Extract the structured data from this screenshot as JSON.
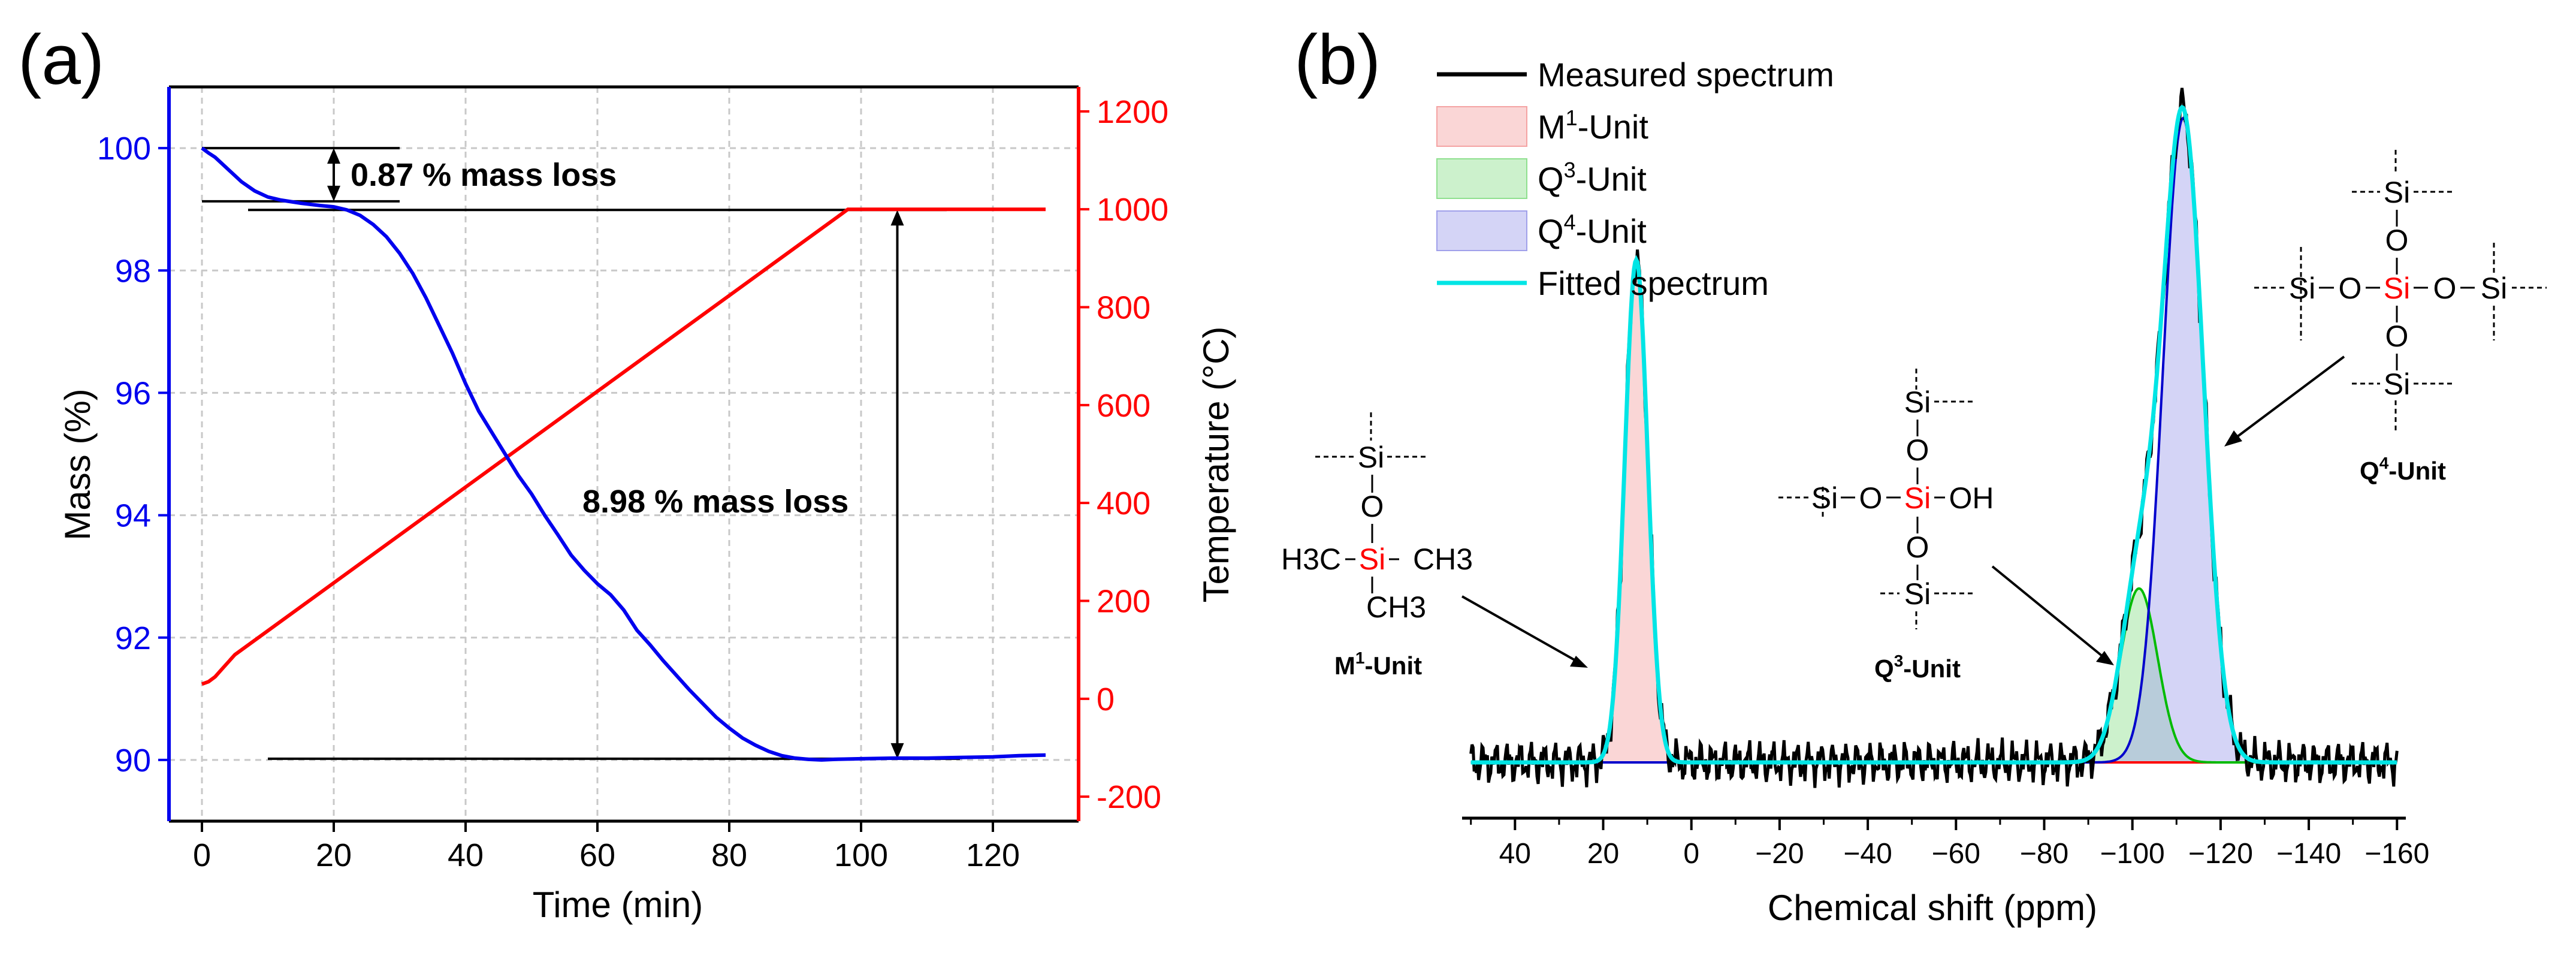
{
  "chart_data": [
    {
      "type": "line",
      "panel_label": "(a)",
      "xlabel": "Time (min)",
      "ylabel_left": "Mass (%)",
      "ylabel_right": "Temperature (°C)",
      "xlim": [
        -5,
        133
      ],
      "ylim_left": [
        89.0,
        101.0
      ],
      "ylim_right": [
        -250,
        1250
      ],
      "xticks": [
        0,
        20,
        40,
        60,
        80,
        100,
        120
      ],
      "yticks_left": [
        90,
        92,
        94,
        96,
        98,
        100
      ],
      "yticks_right": [
        -200,
        0,
        200,
        400,
        600,
        800,
        1000,
        1200
      ],
      "grid": true,
      "colors": {
        "mass": "#0000ee",
        "temperature": "#ff0000",
        "left_axis": "#0000ee",
        "right_axis": "#ff0000"
      },
      "series": [
        {
          "axis": "left",
          "x": [
            0,
            1,
            2,
            4,
            6,
            8,
            10,
            12,
            15,
            18,
            20,
            22,
            24,
            26,
            28,
            30,
            32,
            34,
            36,
            38,
            40,
            42,
            44,
            46,
            48,
            50,
            52,
            54,
            56,
            58,
            60,
            62,
            64,
            66,
            68,
            70,
            72,
            74,
            76,
            78,
            80,
            82,
            84,
            86,
            88,
            90,
            92,
            94,
            96,
            100,
            105,
            110,
            115,
            120,
            124,
            128
          ],
          "values": [
            100.0,
            99.92,
            99.85,
            99.65,
            99.45,
            99.3,
            99.2,
            99.15,
            99.1,
            99.06,
            99.04,
            98.99,
            98.9,
            98.75,
            98.55,
            98.28,
            97.95,
            97.55,
            97.1,
            96.65,
            96.15,
            95.7,
            95.35,
            95.0,
            94.65,
            94.35,
            94.0,
            93.68,
            93.35,
            93.1,
            92.88,
            92.7,
            92.45,
            92.12,
            91.88,
            91.62,
            91.38,
            91.14,
            90.92,
            90.7,
            90.52,
            90.36,
            90.24,
            90.14,
            90.07,
            90.03,
            90.01,
            90.0,
            90.01,
            90.02,
            90.03,
            90.03,
            90.04,
            90.05,
            90.07,
            90.08
          ]
        },
        {
          "axis": "right",
          "x": [
            0,
            1,
            2,
            3,
            5,
            97,
            98,
            100,
            110,
            120,
            128
          ],
          "values": [
            30,
            35,
            45,
            60,
            90,
            990,
            1000,
            1000,
            1000,
            1000,
            1000
          ]
        }
      ],
      "annotations": [
        {
          "text": "0.87 % mass loss"
        },
        {
          "text": "8.98 % mass loss"
        }
      ]
    },
    {
      "type": "area",
      "panel_label": "(b)",
      "xlabel": "Chemical shift (ppm)",
      "xlim": [
        52,
        -162
      ],
      "xticks": [
        40,
        20,
        0,
        -20,
        -40,
        -60,
        -80,
        -100,
        -120,
        -140,
        -160
      ],
      "grid": false,
      "legend": {
        "placement": "top-left",
        "entries": [
          {
            "label": "Measured spectrum",
            "sup": "",
            "rest": "",
            "style": "line",
            "color": "#000000"
          },
          {
            "label": "M",
            "sup": "1",
            "rest": "-Unit",
            "style": "patch",
            "color": "#f4a3a3"
          },
          {
            "label": "Q",
            "sup": "3",
            "rest": "-Unit",
            "style": "patch",
            "color": "#8fe08f"
          },
          {
            "label": "Q",
            "sup": "4",
            "rest": "-Unit",
            "style": "patch",
            "color": "#a0a0ea"
          },
          {
            "label": "Fitted spectrum",
            "sup": "",
            "rest": "",
            "style": "line",
            "color": "#00e5e5"
          }
        ]
      },
      "peaks": [
        {
          "name": "M1-Unit",
          "center": 12.5,
          "height": 0.78,
          "width": 2.6,
          "color": "#ff0000"
        },
        {
          "name": "Q3-Unit",
          "center": -101.5,
          "height": 0.27,
          "width": 4.2,
          "color": "#00bb00"
        },
        {
          "name": "Q4-Unit",
          "center": -111.5,
          "height": 1.0,
          "width": 4.6,
          "color": "#0000cc"
        }
      ],
      "structures": {
        "m1": {
          "label": "M",
          "sup": "1",
          "rest": "-Unit",
          "si": "Si",
          "o": "O",
          "ch3_left": "H3C",
          "ch3_right": "CH3",
          "ch3_bottom": "CH3"
        },
        "q3": {
          "label": "Q",
          "sup": "3",
          "rest": "-Unit",
          "si": "Si",
          "o": "O",
          "oh": "OH"
        },
        "q4": {
          "label": "Q",
          "sup": "4",
          "rest": "-Unit",
          "si": "Si",
          "o": "O"
        }
      }
    }
  ]
}
